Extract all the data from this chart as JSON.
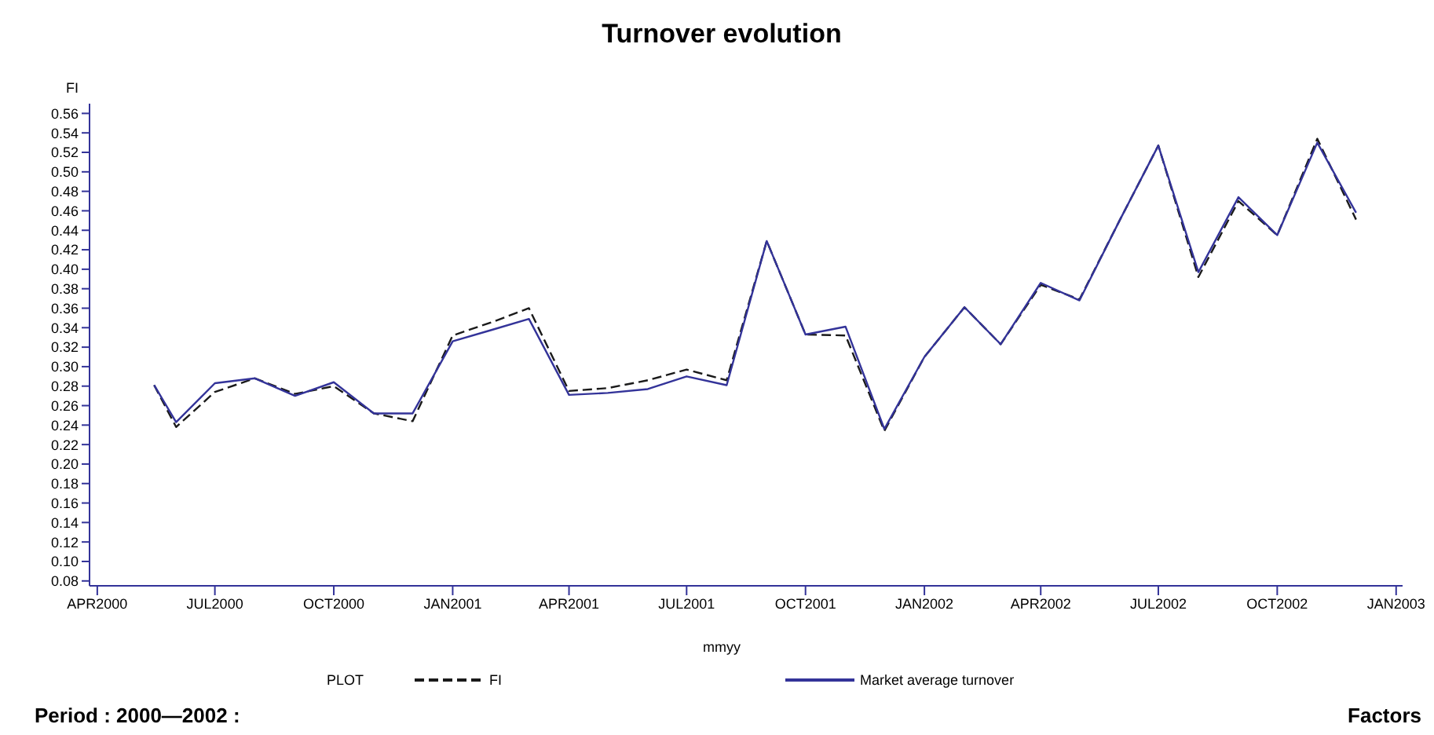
{
  "chart_data": {
    "type": "line",
    "title": "Turnover evolution",
    "xlabel": "mmyy",
    "ylabel": "FI",
    "legend_title": "PLOT",
    "legend": "bottom",
    "grid": false,
    "marker": "none",
    "x": [
      "2000-05-15",
      "2000-06-01",
      "2000-07-01",
      "2000-08-01",
      "2000-09-01",
      "2000-10-01",
      "2000-11-01",
      "2000-12-01",
      "2001-01-01",
      "2001-02-01",
      "2001-03-01",
      "2001-04-01",
      "2001-05-01",
      "2001-06-01",
      "2001-07-01",
      "2001-08-01",
      "2001-09-01",
      "2001-10-01",
      "2001-11-01",
      "2001-12-01",
      "2002-01-01",
      "2002-02-01",
      "2002-03-01",
      "2002-04-01",
      "2002-05-01",
      "2002-06-01",
      "2002-07-01",
      "2002-08-01",
      "2002-09-01",
      "2002-10-01",
      "2002-11-01",
      "2002-12-01"
    ],
    "series": [
      {
        "name": "FI",
        "color": "#1a1a1a",
        "line_style": "dashed",
        "values": [
          0.281,
          0.238,
          0.274,
          0.288,
          0.272,
          0.28,
          0.252,
          0.244,
          0.332,
          0.346,
          0.36,
          0.275,
          0.278,
          0.286,
          0.297,
          0.286,
          0.429,
          0.333,
          0.332,
          0.234,
          0.31,
          0.361,
          0.323,
          0.384,
          0.369,
          0.45,
          0.527,
          0.392,
          0.47,
          0.435,
          0.534,
          0.451
        ]
      },
      {
        "name": "Market average turnover",
        "color": "#333399",
        "line_style": "solid",
        "values": [
          0.281,
          0.243,
          0.283,
          0.288,
          0.27,
          0.284,
          0.252,
          0.252,
          0.326,
          0.338,
          0.349,
          0.271,
          0.273,
          0.277,
          0.29,
          0.281,
          0.429,
          0.333,
          0.341,
          0.236,
          0.31,
          0.361,
          0.323,
          0.386,
          0.368,
          0.45,
          0.527,
          0.397,
          0.474,
          0.435,
          0.53,
          0.458
        ]
      }
    ],
    "xlim": [
      "2000-03-26",
      "2003-01-06"
    ],
    "xticks": [
      {
        "value": "2000-04-01",
        "label": "APR2000"
      },
      {
        "value": "2000-07-01",
        "label": "JUL2000"
      },
      {
        "value": "2000-10-01",
        "label": "OCT2000"
      },
      {
        "value": "2001-01-01",
        "label": "JAN2001"
      },
      {
        "value": "2001-04-01",
        "label": "APR2001"
      },
      {
        "value": "2001-07-01",
        "label": "JUL2001"
      },
      {
        "value": "2001-10-01",
        "label": "OCT2001"
      },
      {
        "value": "2002-01-01",
        "label": "JAN2002"
      },
      {
        "value": "2002-04-01",
        "label": "APR2002"
      },
      {
        "value": "2002-07-01",
        "label": "JUL2002"
      },
      {
        "value": "2002-10-01",
        "label": "OCT2002"
      },
      {
        "value": "2003-01-01",
        "label": "JAN2003"
      }
    ],
    "ylim": [
      0.075,
      0.57
    ],
    "yticks": [
      0.08,
      {
        "value": 0.1,
        "label": "0.10"
      },
      0.12,
      0.14,
      0.16,
      0.18,
      {
        "value": 0.2,
        "label": "0.20"
      },
      0.22,
      0.24,
      0.26,
      0.28,
      {
        "value": 0.3,
        "label": "0.30"
      },
      0.32,
      0.34,
      0.36,
      0.38,
      {
        "value": 0.4,
        "label": "0.40"
      },
      0.42,
      0.44,
      0.46,
      0.48,
      {
        "value": 0.5,
        "label": "0.50"
      },
      0.52,
      0.54,
      0.56
    ],
    "annotations": [
      "Period : 2000—2002 :",
      "Factors"
    ]
  }
}
